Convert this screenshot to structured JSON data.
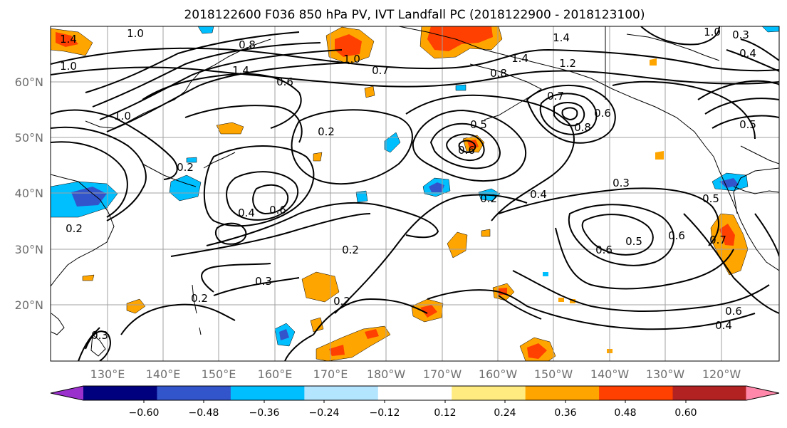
{
  "title": "2018122600 F036 850 hPa PV, IVT Landfall PC (2018122900 - 2018123100)",
  "lat_labels": [
    "60°N",
    "50°N",
    "40°N",
    "30°N",
    "20°N"
  ],
  "lon_labels": [
    "130°E",
    "140°E",
    "150°E",
    "160°E",
    "170°E",
    "180°W",
    "170°W",
    "160°W",
    "150°W",
    "140°W",
    "130°W",
    "120°W"
  ],
  "colorbar": {
    "tick_labels": [
      "−0.60",
      "−0.48",
      "−0.36",
      "−0.24",
      "−0.12",
      "0.12",
      "0.24",
      "0.36",
      "0.48",
      "0.60"
    ],
    "colors": [
      "#9a31cc",
      "#00007f",
      "#3355cc",
      "#00bfff",
      "#b3e5ff",
      "#ffffff",
      "#ffeb80",
      "#ffa500",
      "#ff4000",
      "#b22222",
      "#ff88aa"
    ]
  },
  "contour_labels": [
    "1.0",
    "0.8",
    "1.4",
    "1.0",
    "0.7",
    "1.4",
    "1.2",
    "1.0",
    "0.3",
    "0.4",
    "1.4",
    "1.0",
    "0.8",
    "1.4",
    "0.6",
    "1.0",
    "0.7",
    "0.6",
    "0.8",
    "0.5",
    "0.2",
    "0.5",
    "0.6",
    "0.2",
    "0.4",
    "0.6",
    "0.2",
    "0.4",
    "0.3",
    "0.5",
    "0.6",
    "0.6",
    "0.5",
    "0.7",
    "0.2",
    "0.2",
    "0.3",
    "0.2",
    "0.2",
    "0.6",
    "0.4",
    "0.3"
  ]
}
